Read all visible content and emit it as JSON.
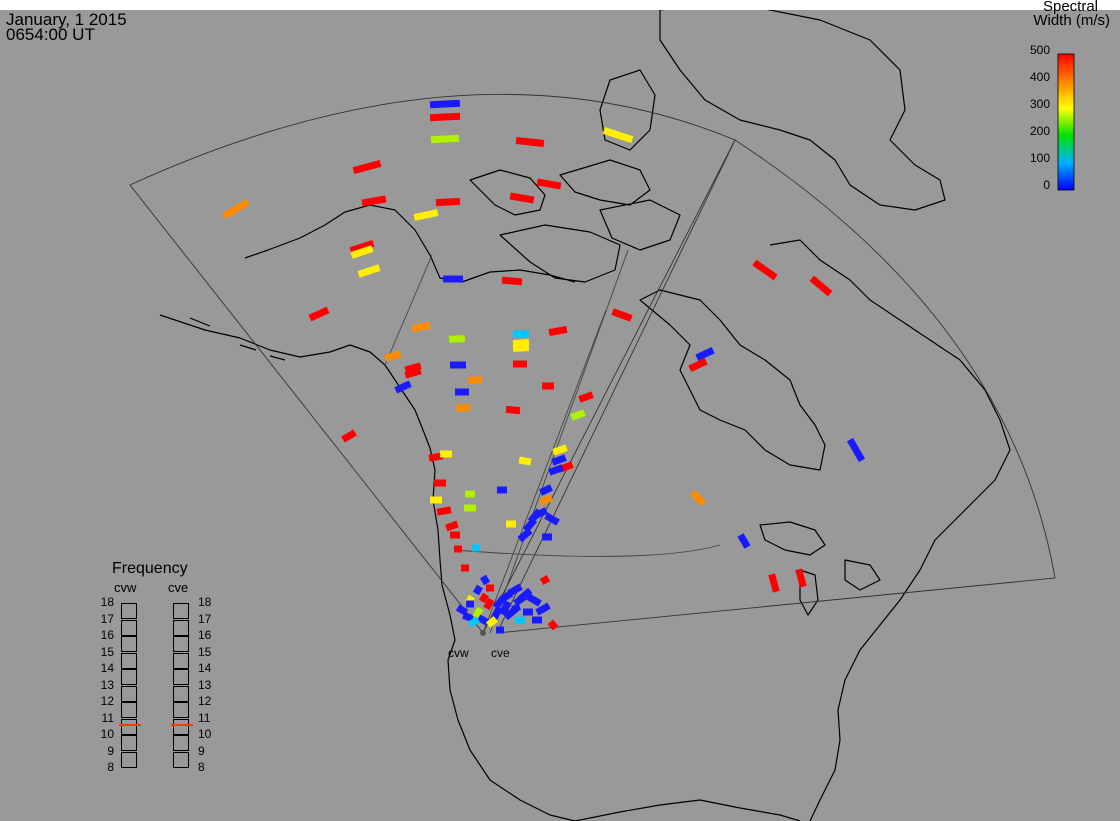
{
  "header": {
    "date": "January, 1 2015",
    "time": "0654:00 UT"
  },
  "colorbar": {
    "title_line1": "Spectral",
    "title_line2": "Width (m/s)",
    "ticks": [
      "500",
      "400",
      "300",
      "200",
      "100",
      "0"
    ],
    "range": [
      0,
      500
    ]
  },
  "radars": [
    {
      "code": "cvw"
    },
    {
      "code": "cve"
    }
  ],
  "frequency_panel": {
    "title": "Frequency",
    "left_label": "cvw",
    "right_label": "cve",
    "ticks": [
      "18",
      "17",
      "16",
      "15",
      "14",
      "13",
      "12",
      "11",
      "10",
      "9",
      "8"
    ],
    "cvw_value_mhz": 10.6,
    "cve_value_mhz": 10.6,
    "marker_color": "#ff3a00"
  },
  "colors": {
    "map_background": "#999999",
    "coastline": "#000000"
  }
}
